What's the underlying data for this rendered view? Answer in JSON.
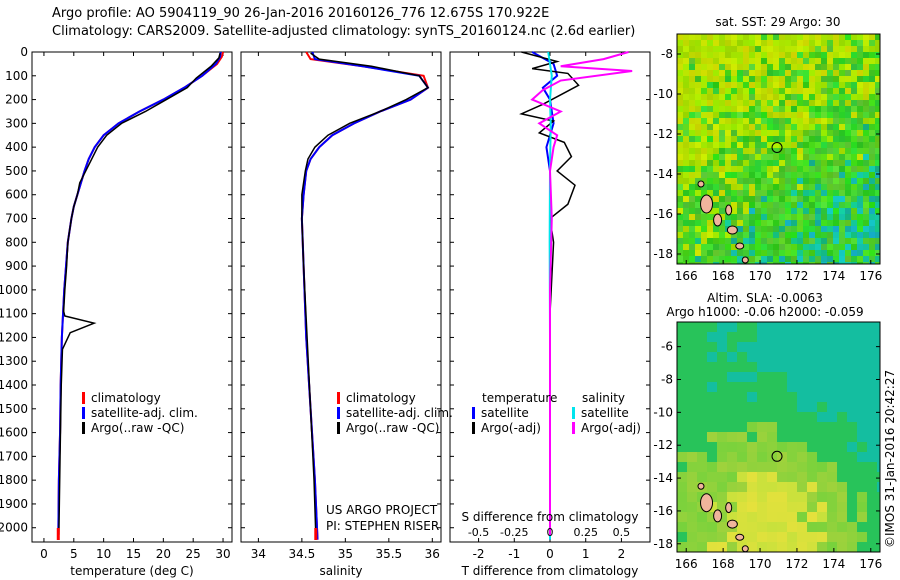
{
  "header": {
    "line1": "Argo profile: AO 5904119_90 26-Jan-2016 20160126_776 12.675S 170.922E",
    "line2": "Climatology: CARS2009. Satellite-adjusted climatology: synTS_20160124.nc (2.6d earlier)"
  },
  "colors": {
    "climatology": "#ff0000",
    "satellite": "#0000ff",
    "argo": "#000000",
    "sal_sat": "#00e5ee",
    "sal_argo": "#ff00ff"
  },
  "chart_data": [
    {
      "type": "line",
      "xlabel": "temperature (deg C)",
      "xticks": [
        "0",
        "5",
        "10",
        "15",
        "20",
        "25",
        "30"
      ],
      "xlim": [
        -2,
        31.5
      ],
      "ylim": [
        2060,
        0
      ],
      "yticks": [
        "0",
        "100",
        "200",
        "300",
        "400",
        "500",
        "600",
        "700",
        "800",
        "900",
        "1000",
        "1100",
        "1200",
        "1300",
        "1400",
        "1500",
        "1600",
        "1700",
        "1800",
        "1900",
        "2000"
      ],
      "legend": [
        "climatology",
        "satellite-adj. clim.",
        "Argo(..raw -QC)"
      ],
      "series": [
        {
          "name": "climatology",
          "color": "#ff0000",
          "x": [
            30,
            29.8,
            29,
            26.5,
            23.5,
            20,
            16,
            12.5,
            10,
            8.5,
            7.5,
            6.8,
            6.2,
            5.6,
            5,
            4.6,
            4.3,
            4,
            3.7,
            3.4,
            3.2,
            3,
            2.8,
            2.7,
            2.5,
            2.4
          ],
          "y": [
            0,
            20,
            50,
            100,
            150,
            200,
            250,
            300,
            350,
            400,
            450,
            500,
            550,
            600,
            650,
            700,
            750,
            800,
            900,
            1000,
            1100,
            1200,
            1400,
            1600,
            1800,
            2050
          ]
        },
        {
          "name": "satellite-adj. clim.",
          "color": "#0000ff",
          "x": [
            29.6,
            29.5,
            28.8,
            26.5,
            23.5,
            20,
            16,
            12.5,
            10,
            8.5,
            7.5,
            6.8,
            6.2,
            5.6,
            5,
            4.6,
            4.3,
            4,
            3.7,
            3.4,
            3.2,
            3,
            2.8,
            2.7,
            2.5,
            2.4
          ],
          "y": [
            0,
            20,
            50,
            100,
            150,
            200,
            250,
            300,
            350,
            400,
            450,
            500,
            550,
            600,
            650,
            700,
            750,
            800,
            900,
            1000,
            1100,
            1200,
            1400,
            1600,
            1800,
            2050
          ]
        },
        {
          "name": "Argo(..raw -QC)",
          "color": "#000000",
          "x": [
            29.5,
            29.3,
            28,
            25.5,
            24,
            20.5,
            17,
            13,
            10.5,
            9,
            8,
            7,
            6,
            5.6,
            5,
            4.6,
            4.3,
            4,
            3.8,
            3.5,
            3.3,
            3.5,
            8.4,
            4.4,
            3.1,
            2.9,
            2.7,
            2.5
          ],
          "y": [
            5,
            25,
            60,
            110,
            150,
            200,
            250,
            300,
            350,
            400,
            450,
            500,
            550,
            600,
            650,
            700,
            750,
            800,
            900,
            1000,
            1090,
            1110,
            1140,
            1180,
            1250,
            1400,
            1700,
            2030
          ]
        }
      ]
    },
    {
      "type": "line",
      "xlabel": "salinity",
      "xticks": [
        "34",
        "34.5",
        "35",
        "35.5",
        "36"
      ],
      "xlim": [
        33.8,
        36.1
      ],
      "ylim": [
        2060,
        0
      ],
      "legend": [
        "climatology",
        "satellite-adj. clim.",
        "Argo(..raw -QC)"
      ],
      "annotations": [
        "US ARGO PROJECT",
        "PI: STEPHEN RISER"
      ],
      "series": [
        {
          "name": "climatology",
          "color": "#ff0000",
          "x": [
            34.55,
            34.6,
            35.2,
            35.9,
            35.95,
            35.75,
            35.4,
            35.1,
            34.85,
            34.7,
            34.6,
            34.55,
            34.52,
            34.5,
            34.52,
            34.55,
            34.6,
            34.65,
            34.68
          ],
          "y": [
            0,
            30,
            60,
            100,
            150,
            200,
            250,
            300,
            350,
            400,
            450,
            500,
            600,
            700,
            900,
            1200,
            1500,
            1800,
            2050
          ]
        },
        {
          "name": "satellite-adj. clim.",
          "color": "#0000ff",
          "x": [
            34.62,
            34.65,
            35.2,
            35.85,
            35.95,
            35.75,
            35.4,
            35.1,
            34.85,
            34.7,
            34.6,
            34.55,
            34.52,
            34.5,
            34.52,
            34.55,
            34.6,
            34.65,
            34.68
          ],
          "y": [
            0,
            30,
            60,
            100,
            150,
            200,
            250,
            300,
            350,
            400,
            450,
            500,
            600,
            700,
            900,
            1200,
            1500,
            1800,
            2050
          ]
        },
        {
          "name": "Argo(..raw -QC)",
          "color": "#000000",
          "x": [
            34.6,
            34.7,
            35.3,
            35.85,
            35.95,
            35.7,
            35.4,
            35.05,
            34.8,
            34.65,
            34.57,
            34.54,
            34.5,
            34.5,
            34.52,
            34.56,
            34.6,
            34.64,
            34.66
          ],
          "y": [
            5,
            30,
            60,
            100,
            150,
            200,
            250,
            300,
            350,
            400,
            450,
            500,
            600,
            700,
            900,
            1200,
            1500,
            1800,
            2030
          ]
        }
      ]
    },
    {
      "type": "line",
      "xlabel": "T difference from climatology",
      "xticks": [
        "-2",
        "-1",
        "0",
        "1",
        "2"
      ],
      "xlim": [
        -2.8,
        2.8
      ],
      "top_xlabel": "S difference from climatology",
      "top_xticks": [
        "-0.5",
        "-0.25",
        "0",
        "0.25",
        "0.5"
      ],
      "ylim": [
        2060,
        0
      ],
      "legend_titles": [
        "temperature",
        "salinity"
      ],
      "legend": [
        "satellite",
        "Argo(-adj)",
        "satellite",
        "Argo(-adj)"
      ],
      "series": [
        {
          "name": "satellite",
          "color": "#0000ff",
          "x": [
            -0.5,
            0.1,
            0.2,
            -0.2,
            0,
            0.1,
            -0.1,
            0,
            0,
            0,
            0
          ],
          "y": [
            0,
            50,
            100,
            150,
            200,
            300,
            400,
            500,
            700,
            1200,
            2050
          ]
        },
        {
          "name": "Argo(-adj)",
          "color": "#000000",
          "x": [
            -0.8,
            0.2,
            -0.5,
            0.5,
            0.8,
            0.3,
            -0.2,
            -0.8,
            0.1,
            -0.3,
            0.4,
            0.6,
            0.2,
            0.7,
            0.5,
            0,
            0.1,
            0,
            0,
            0
          ],
          "y": [
            0,
            40,
            70,
            90,
            140,
            180,
            220,
            260,
            290,
            340,
            380,
            440,
            500,
            560,
            640,
            700,
            800,
            1100,
            1600,
            2030
          ]
        },
        {
          "name": "satellite",
          "color": "#00e5ee",
          "x": [
            -0.05,
            0.05,
            0,
            0.02,
            0,
            -0.01,
            0,
            0
          ],
          "y": [
            0,
            100,
            200,
            300,
            500,
            800,
            1200,
            2050
          ]
        },
        {
          "name": "Argo(-adj)",
          "color": "#ff00ff",
          "x": [
            2.2,
            1.5,
            0.3,
            2.3,
            0.3,
            -0.2,
            -0.5,
            0.3,
            -0.3,
            0.2,
            0.1,
            0,
            0.05,
            0,
            0
          ],
          "y": [
            0,
            30,
            60,
            80,
            120,
            160,
            200,
            250,
            300,
            350,
            400,
            500,
            700,
            1000,
            2030
          ]
        }
      ]
    },
    {
      "type": "heatmap",
      "title": "sat. SST: 29 Argo: 30",
      "xticks": [
        "166",
        "168",
        "170",
        "172",
        "174",
        "176"
      ],
      "yticks": [
        "-8",
        "-10",
        "-12",
        "-14",
        "-16",
        "-18"
      ],
      "xlim": [
        165.5,
        176.5
      ],
      "ylim": [
        -18.5,
        -7
      ]
    },
    {
      "type": "heatmap",
      "title": "Altim. SLA: -0.0063",
      "subtitle": "Argo h1000: -0.06 h2000: -0.059",
      "xticks": [
        "166",
        "168",
        "170",
        "172",
        "174",
        "176"
      ],
      "yticks": [
        "-6",
        "-8",
        "-10",
        "-12",
        "-14",
        "-16",
        "-18"
      ],
      "xlim": [
        165.5,
        176.5
      ],
      "ylim": [
        -18.5,
        -4.5
      ]
    }
  ],
  "footer": {
    "imos_stamp": "©IMOS 31-Jan-2016 20:42:27"
  }
}
